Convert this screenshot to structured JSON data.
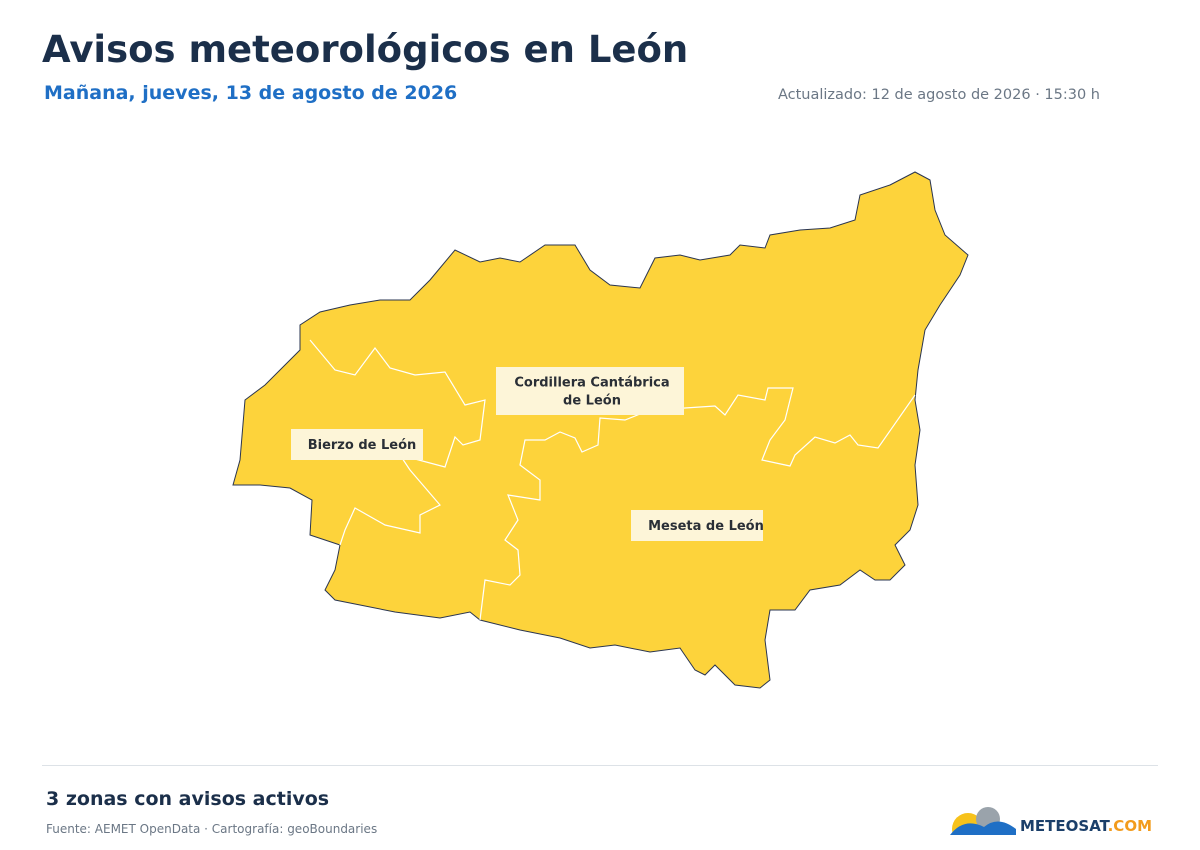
{
  "header": {
    "title": "Avisos meteorológicos en León",
    "subtitle": "Mañana, jueves, 13 de agosto de 2026",
    "updated": "Actualizado: 12 de agosto de 2026 · 15:30 h"
  },
  "map": {
    "fill": "#fdd33b",
    "zones": [
      {
        "label": [
          "Cordillera Cantábrica",
          "de León"
        ]
      },
      {
        "label": [
          "Bierzo de León"
        ]
      },
      {
        "label": [
          "Meseta de León"
        ]
      }
    ]
  },
  "footer": {
    "summary": "3 zonas con avisos activos",
    "source": "Fuente: AEMET OpenData · Cartografía: geoBoundaries",
    "logo": [
      "METEO",
      "SAT",
      ".COM"
    ]
  }
}
